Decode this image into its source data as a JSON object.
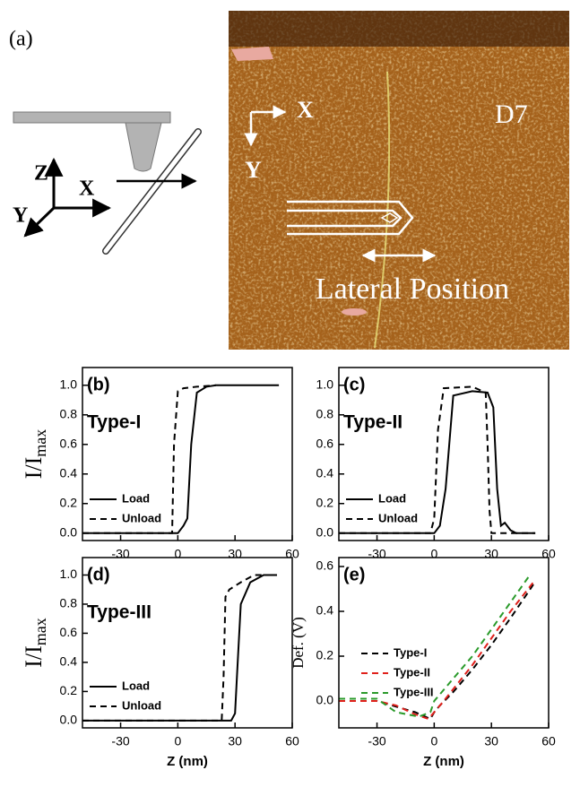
{
  "panel_a": {
    "label": "(a)",
    "axes": [
      "Z",
      "X",
      "Y"
    ],
    "image_axes": [
      "X",
      "Y"
    ],
    "sample": "D7",
    "annotation": "Lateral Position"
  },
  "chart_data": [
    {
      "type": "line",
      "panel_label": "(b)",
      "annotation": "Type-I",
      "ylabel": "I/I",
      "ylabel_sub": "max",
      "legend": "lower left",
      "xlim": [
        -50,
        60
      ],
      "xticks": [
        -30,
        0,
        30,
        60
      ],
      "ylim": [
        -0.05,
        1.12
      ],
      "yticks": [
        {
          "value": 0,
          "label": "0.0"
        },
        {
          "value": 0.2,
          "label": "0.2"
        },
        {
          "value": 0.4,
          "label": "0.4"
        },
        {
          "value": 0.6,
          "label": "0.6"
        },
        {
          "value": 0.8,
          "label": "0.8"
        },
        {
          "value": 1,
          "label": "1.0"
        }
      ],
      "series": [
        {
          "name": "Load",
          "color": "#000000",
          "linestyle": "solid",
          "x": [
            -50,
            0,
            3,
            5,
            7,
            10,
            15,
            20,
            30,
            40,
            53
          ],
          "values": [
            0,
            0,
            0.05,
            0.1,
            0.6,
            0.95,
            0.99,
            1,
            1,
            1,
            1
          ]
        },
        {
          "name": "Unload",
          "color": "#000000",
          "linestyle": "dashed",
          "x": [
            -50,
            -3,
            -2,
            0,
            3,
            10,
            20
          ],
          "values": [
            0,
            0,
            0.6,
            0.96,
            0.98,
            0.99,
            1
          ]
        }
      ]
    },
    {
      "type": "line",
      "panel_label": "(c)",
      "annotation": "Type-II",
      "legend": "lower left",
      "xlim": [
        -50,
        60
      ],
      "xticks": [
        -30,
        0,
        30,
        60
      ],
      "ylim": [
        -0.05,
        1.12
      ],
      "yticks": [
        {
          "value": 0,
          "label": "0.0"
        },
        {
          "value": 0.2,
          "label": "0.2"
        },
        {
          "value": 0.4,
          "label": "0.4"
        },
        {
          "value": 0.6,
          "label": "0.6"
        },
        {
          "value": 0.8,
          "label": "0.8"
        },
        {
          "value": 1,
          "label": "1.0"
        }
      ],
      "series": [
        {
          "name": "Load",
          "color": "#000000",
          "linestyle": "solid",
          "x": [
            -50,
            0,
            3,
            6,
            10,
            20,
            28,
            31,
            33,
            35,
            37,
            40,
            43,
            53
          ],
          "values": [
            0,
            0,
            0.05,
            0.3,
            0.93,
            0.96,
            0.95,
            0.85,
            0.3,
            0.05,
            0.07,
            0.02,
            0,
            0
          ]
        },
        {
          "name": "Unload",
          "color": "#000000",
          "linestyle": "dashed",
          "x": [
            -50,
            -2,
            0,
            2,
            5,
            20,
            27,
            28,
            29,
            30,
            35,
            53
          ],
          "values": [
            0,
            0,
            0.1,
            0.7,
            0.98,
            0.99,
            0.95,
            0.6,
            0.15,
            0,
            0,
            0
          ]
        }
      ]
    },
    {
      "type": "line",
      "panel_label": "(d)",
      "annotation": "Type-III",
      "ylabel": "I/I",
      "ylabel_sub": "max",
      "xlabel": "Z (nm)",
      "legend": "lower left",
      "xlim": [
        -50,
        60
      ],
      "xticks": [
        -30,
        0,
        30,
        60
      ],
      "ylim": [
        -0.05,
        1.12
      ],
      "yticks": [
        {
          "value": 0,
          "label": "0.0"
        },
        {
          "value": 0.2,
          "label": "0.2"
        },
        {
          "value": 0.4,
          "label": "0.4"
        },
        {
          "value": 0.6,
          "label": "0.6"
        },
        {
          "value": 0.8,
          "label": "0.8"
        },
        {
          "value": 1,
          "label": "1.0"
        }
      ],
      "series": [
        {
          "name": "Load",
          "color": "#000000",
          "linestyle": "solid",
          "x": [
            -50,
            28,
            30,
            31,
            33,
            38,
            45,
            52
          ],
          "values": [
            0,
            0,
            0.05,
            0.3,
            0.8,
            0.95,
            1,
            1
          ]
        },
        {
          "name": "Unload",
          "color": "#000000",
          "linestyle": "dashed",
          "x": [
            -50,
            23,
            24,
            25,
            27,
            33,
            40,
            50
          ],
          "values": [
            0,
            0,
            0.3,
            0.85,
            0.9,
            0.95,
            1,
            1
          ]
        }
      ]
    },
    {
      "type": "line",
      "panel_label": "(e)",
      "ylabel": "Def. (V)",
      "xlabel": "Z (nm)",
      "legend": "left",
      "xlim": [
        -50,
        60
      ],
      "xticks": [
        -30,
        0,
        30,
        60
      ],
      "ylim": [
        -0.12,
        0.64
      ],
      "yticks": [
        {
          "value": 0,
          "label": "0.0"
        },
        {
          "value": 0.2,
          "label": "0.2"
        },
        {
          "value": 0.4,
          "label": "0.4"
        },
        {
          "value": 0.6,
          "label": "0.6"
        }
      ],
      "series": [
        {
          "name": "Type-I",
          "color": "#000000",
          "linestyle": "dashed",
          "x": [
            -50,
            -30,
            -10,
            -2,
            0,
            3,
            10,
            20,
            30,
            40,
            52
          ],
          "values": [
            0,
            0,
            -0.05,
            -0.08,
            -0.05,
            -0.02,
            0.04,
            0.14,
            0.25,
            0.37,
            0.52
          ]
        },
        {
          "name": "Type-II",
          "color": "#e0201b",
          "linestyle": "dashed",
          "x": [
            -50,
            -30,
            -20,
            -10,
            -3,
            0,
            5,
            20,
            30,
            40,
            52
          ],
          "values": [
            0,
            0,
            -0.02,
            -0.06,
            -0.08,
            -0.05,
            0,
            0.16,
            0.28,
            0.4,
            0.53
          ]
        },
        {
          "name": "Type-III",
          "color": "#2a9a2a",
          "linestyle": "dashed",
          "x": [
            -50,
            -30,
            -20,
            -8,
            -2,
            0,
            10,
            20,
            30,
            40,
            50
          ],
          "values": [
            0.01,
            0.01,
            -0.05,
            -0.07,
            -0.05,
            0,
            0.1,
            0.2,
            0.32,
            0.44,
            0.56
          ]
        }
      ]
    }
  ]
}
